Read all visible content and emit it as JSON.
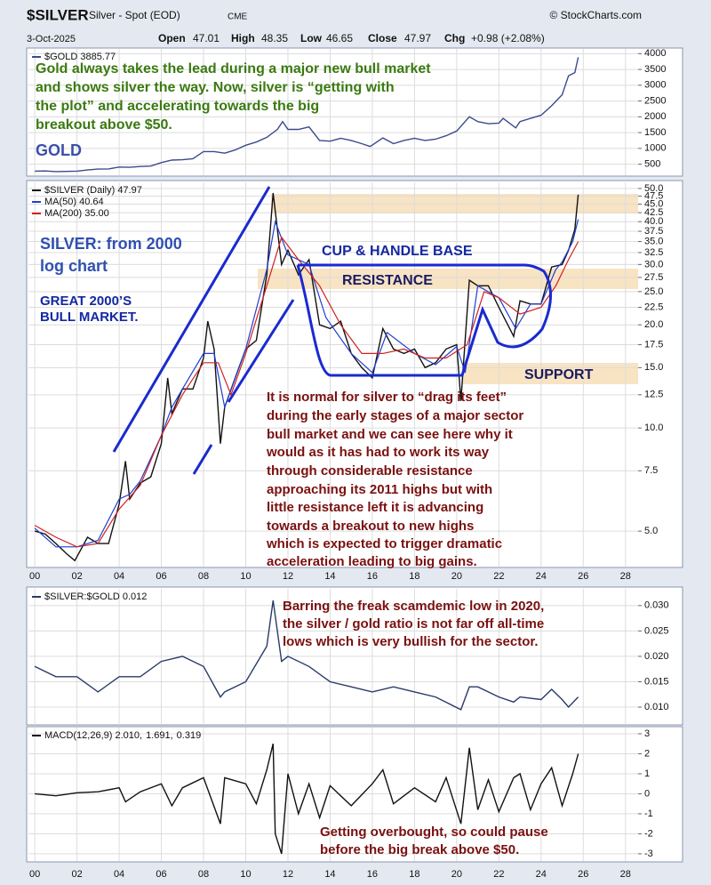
{
  "header": {
    "symbol": "$SILVER",
    "name": "Silver - Spot (EOD)",
    "exchange": "CME",
    "source": "© StockCharts.com",
    "date": "3-Oct-2025",
    "open_label": "Open",
    "open": 47.01,
    "high_label": "High",
    "high": 48.35,
    "low_label": "Low",
    "low": 46.65,
    "close_label": "Close",
    "close": 47.97,
    "chg_label": "Chg",
    "chg": "+0.98 (+2.08%)"
  },
  "chart_data": [
    {
      "type": "line",
      "log_scale": false,
      "grid": true,
      "x": [
        2000,
        2000.5,
        2001,
        2001.5,
        2002,
        2002.5,
        2003,
        2003.5,
        2004,
        2004.5,
        2005,
        2005.5,
        2006,
        2006.5,
        2007,
        2007.5,
        2008,
        2008.5,
        2009,
        2009.5,
        2010,
        2010.5,
        2011,
        2011.5,
        2011.75,
        2012,
        2012.5,
        2013,
        2013.5,
        2014,
        2014.5,
        2015,
        2015.5,
        2015.9,
        2016.5,
        2017,
        2017.5,
        2018,
        2018.5,
        2019,
        2019.5,
        2020,
        2020.6,
        2021,
        2021.5,
        2022,
        2022.2,
        2022.8,
        2023,
        2023.5,
        2024,
        2024.5,
        2025,
        2025.3,
        2025.6,
        2025.76
      ],
      "series": [
        {
          "name": "$GOLD 3885.77",
          "color": "#3b4a8c",
          "values": [
            280,
            285,
            265,
            270,
            280,
            315,
            345,
            350,
            410,
            400,
            425,
            440,
            550,
            630,
            640,
            670,
            900,
            900,
            850,
            950,
            1100,
            1200,
            1350,
            1600,
            1850,
            1600,
            1600,
            1680,
            1250,
            1230,
            1320,
            1250,
            1150,
            1060,
            1330,
            1150,
            1250,
            1320,
            1250,
            1290,
            1400,
            1550,
            2000,
            1850,
            1780,
            1800,
            1950,
            1650,
            1850,
            1950,
            2050,
            2350,
            2700,
            3300,
            3400,
            3886
          ]
        }
      ],
      "xlim": [
        1999.7,
        2028.6
      ],
      "ylim": [
        150,
        4150
      ],
      "yticks": [
        500,
        1000,
        1500,
        2000,
        2500,
        3000,
        3500,
        4000
      ],
      "annotations": [
        {
          "text": "Gold always takes the lead during a major new bull market",
          "color": "#3a7a10"
        },
        {
          "text": "and shows silver the way. Now, silver is “getting with",
          "color": "#3a7a10"
        },
        {
          "text": "the plot” and accelerating towards the big",
          "color": "#3a7a10"
        },
        {
          "text": "breakout above $50.",
          "color": "#3a7a10"
        },
        {
          "text": "GOLD",
          "color": "#3b4fa8"
        }
      ]
    },
    {
      "type": "line",
      "log_scale": true,
      "grid": true,
      "x": [
        2000,
        2000.5,
        2001,
        2001.5,
        2001.9,
        2002.5,
        2003,
        2003.5,
        2004,
        2004.3,
        2004.5,
        2005,
        2005.5,
        2006,
        2006.3,
        2006.5,
        2007,
        2007.5,
        2008,
        2008.2,
        2008.5,
        2008.8,
        2009,
        2009.5,
        2010,
        2010.5,
        2011,
        2011.3,
        2011.7,
        2012,
        2012.5,
        2013,
        2013.5,
        2014,
        2014.5,
        2015,
        2015.5,
        2016,
        2016.5,
        2017,
        2017.5,
        2018,
        2018.5,
        2019,
        2019.5,
        2020,
        2020.2,
        2020.6,
        2021,
        2021.5,
        2022,
        2022.7,
        2023,
        2023.5,
        2024,
        2024.5,
        2025,
        2025.3,
        2025.6,
        2025.76
      ],
      "series": [
        {
          "name": "$SILVER (Daily) 47.97",
          "color": "#111111",
          "values": [
            5.0,
            4.9,
            4.6,
            4.3,
            4.1,
            4.8,
            4.6,
            4.6,
            6.0,
            8.0,
            6.2,
            6.9,
            7.2,
            9.0,
            14.0,
            11.0,
            13.0,
            13.0,
            16.0,
            20.5,
            17.0,
            9.0,
            11.5,
            14.0,
            17.0,
            18.0,
            28.0,
            48.5,
            30.0,
            33.0,
            28.0,
            31.0,
            20.0,
            19.5,
            20.5,
            16.5,
            15.0,
            14.0,
            19.5,
            17.0,
            16.5,
            17.0,
            15.0,
            15.5,
            17.0,
            17.5,
            12.0,
            27.0,
            26.0,
            26.0,
            22.5,
            18.5,
            23.5,
            23.0,
            23.0,
            29.5,
            30.0,
            33.0,
            38.0,
            47.97
          ]
        },
        {
          "name": "MA(50) 40.64",
          "color": "#1f3fd0",
          "x": [
            2000,
            2001,
            2002,
            2003,
            2004,
            2004.5,
            2005,
            2006,
            2006.5,
            2007,
            2008,
            2008.5,
            2009,
            2010,
            2011,
            2011.4,
            2012,
            2013,
            2013.8,
            2015,
            2016,
            2016.7,
            2018,
            2019,
            2020,
            2020.4,
            2021,
            2022,
            2022.8,
            2023.5,
            2024,
            2024.7,
            2025,
            2025.5,
            2025.76
          ],
          "values": [
            5.1,
            4.5,
            4.5,
            4.7,
            6.2,
            6.4,
            7.0,
            9.5,
            11.5,
            13.0,
            16.5,
            16.5,
            11.5,
            17.0,
            29.0,
            40.0,
            32.0,
            30.0,
            21.0,
            16.5,
            14.5,
            19.0,
            16.5,
            15.3,
            17.3,
            14.5,
            26.0,
            24.0,
            19.5,
            23.0,
            23.0,
            29.0,
            30.5,
            35.0,
            40.64
          ]
        },
        {
          "name": "MA(200) 35.00",
          "color": "#d02020",
          "x": [
            2000,
            2001,
            2002,
            2003,
            2004,
            2005,
            2006,
            2007,
            2008,
            2008.7,
            2009.3,
            2010,
            2011,
            2011.7,
            2012.5,
            2013.5,
            2014.5,
            2015.5,
            2016.5,
            2017.5,
            2018.5,
            2019.5,
            2020.5,
            2021.3,
            2022,
            2023,
            2024,
            2024.7,
            2025.3,
            2025.76
          ],
          "values": [
            5.2,
            4.8,
            4.5,
            4.6,
            5.8,
            6.8,
            9.5,
            12.5,
            15.5,
            15.5,
            12.5,
            16.5,
            26.0,
            36.0,
            31.0,
            26.0,
            20.0,
            16.5,
            16.5,
            17.0,
            16.0,
            16.0,
            17.5,
            25.0,
            24.0,
            21.5,
            22.5,
            26.0,
            31.0,
            35.0
          ]
        }
      ],
      "xlim": [
        1999.7,
        2028.6
      ],
      "ylim": [
        3.94,
        52.1
      ],
      "yticks": [
        {
          "value": 5,
          "label": "5.0"
        },
        {
          "value": 7.5,
          "label": "7.5"
        },
        {
          "value": 10,
          "label": "10.0"
        },
        {
          "value": 12.5,
          "label": "12.5"
        },
        {
          "value": 15,
          "label": "15.0"
        },
        {
          "value": 17.5,
          "label": "17.5"
        },
        {
          "value": 20,
          "label": "20.0"
        },
        {
          "value": 22.5,
          "label": "22.5"
        },
        {
          "value": 25,
          "label": "25.0"
        },
        {
          "value": 27.5,
          "label": "27.5"
        },
        {
          "value": 30,
          "label": "30.0"
        },
        {
          "value": 32.5,
          "label": "32.5"
        },
        {
          "value": 35,
          "label": "35.0"
        },
        {
          "value": 37.5,
          "label": "37.5"
        },
        {
          "value": 40,
          "label": "40.0"
        },
        {
          "value": 42.5,
          "label": "42.5"
        },
        {
          "value": 45,
          "label": "45.0"
        },
        {
          "value": 47.5,
          "label": "47.5"
        },
        {
          "value": 50,
          "label": "50.0"
        }
      ],
      "xticks": [
        {
          "value": 2000,
          "label": "00"
        },
        {
          "value": 2002,
          "label": "02"
        },
        {
          "value": 2004,
          "label": "04"
        },
        {
          "value": 2006,
          "label": "06"
        },
        {
          "value": 2008,
          "label": "08"
        },
        {
          "value": 2010,
          "label": "10"
        },
        {
          "value": 2012,
          "label": "12"
        },
        {
          "value": 2014,
          "label": "14"
        },
        {
          "value": 2016,
          "label": "16"
        },
        {
          "value": 2018,
          "label": "18"
        },
        {
          "value": 2020,
          "label": "20"
        },
        {
          "value": 2022,
          "label": "22"
        },
        {
          "value": 2024,
          "label": "24"
        },
        {
          "value": 2026,
          "label": "26"
        },
        {
          "value": 2028,
          "label": "28"
        }
      ],
      "annotations": [
        {
          "text": "SILVER: from 2000",
          "color": "#3050b0"
        },
        {
          "text": "log chart",
          "color": "#3050b0"
        },
        {
          "text": "GREAT 2000’S",
          "color": "#1428a0"
        },
        {
          "text": "BULL MARKET.",
          "color": "#1428a0"
        },
        {
          "text": "CUP & HANDLE BASE",
          "color": "#1428a0"
        },
        {
          "text": "RESISTANCE",
          "color": "#1a1a60"
        },
        {
          "text": "SUPPORT",
          "color": "#1a1a60"
        },
        {
          "text": "It is normal for silver to “drag its feet”",
          "color": "#7a1010"
        },
        {
          "text": "during the early stages of a major sector",
          "color": "#7a1010"
        },
        {
          "text": "bull market and we can see here why it",
          "color": "#7a1010"
        },
        {
          "text": "would as it has had to work its way",
          "color": "#7a1010"
        },
        {
          "text": "through considerable resistance",
          "color": "#7a1010"
        },
        {
          "text": "approaching its 2011 highs but with",
          "color": "#7a1010"
        },
        {
          "text": "little resistance left it is advancing",
          "color": "#7a1010"
        },
        {
          "text": "towards a breakout to new highs",
          "color": "#7a1010"
        },
        {
          "text": "which is expected to trigger dramatic",
          "color": "#7a1010"
        },
        {
          "text": "acceleration leading to big gains.",
          "color": "#7a1010"
        }
      ]
    },
    {
      "type": "line",
      "log_scale": false,
      "grid": true,
      "x": [
        2000,
        2001,
        2002,
        2003,
        2004,
        2005,
        2006,
        2007,
        2008,
        2008.8,
        2009,
        2010,
        2011,
        2011.3,
        2011.7,
        2012,
        2013,
        2014,
        2015,
        2016,
        2017,
        2018,
        2019,
        2020.2,
        2020.6,
        2021,
        2022,
        2022.7,
        2023,
        2024,
        2024.5,
        2025,
        2025.3,
        2025.76
      ],
      "series": [
        {
          "name": "$SILVER:$GOLD 0.012",
          "color": "#2a3a6a",
          "values": [
            0.018,
            0.016,
            0.016,
            0.013,
            0.016,
            0.016,
            0.019,
            0.02,
            0.018,
            0.012,
            0.013,
            0.015,
            0.022,
            0.031,
            0.019,
            0.02,
            0.018,
            0.015,
            0.014,
            0.013,
            0.014,
            0.013,
            0.012,
            0.0095,
            0.014,
            0.014,
            0.012,
            0.011,
            0.012,
            0.0115,
            0.0135,
            0.0115,
            0.01,
            0.012
          ]
        }
      ],
      "xlim": [
        1999.7,
        2028.6
      ],
      "ylim": [
        0.0065,
        0.0333
      ],
      "yticks": [
        {
          "value": 0.01,
          "label": "0.010"
        },
        {
          "value": 0.015,
          "label": "0.015"
        },
        {
          "value": 0.02,
          "label": "0.020"
        },
        {
          "value": 0.025,
          "label": "0.025"
        },
        {
          "value": 0.03,
          "label": "0.030"
        }
      ],
      "annotations": [
        {
          "text": "Barring the freak scamdemic low in 2020,",
          "color": "#7a1010"
        },
        {
          "text": "the silver / gold ratio is not far off all-time",
          "color": "#7a1010"
        },
        {
          "text": "lows which is very bullish for the sector.",
          "color": "#7a1010"
        }
      ]
    },
    {
      "type": "line",
      "log_scale": false,
      "grid": true,
      "x": [
        2000,
        2001,
        2002,
        2003,
        2004,
        2004.3,
        2005,
        2006,
        2006.5,
        2007,
        2008,
        2008.8,
        2009,
        2010,
        2010.5,
        2011,
        2011.3,
        2011.4,
        2011.7,
        2012,
        2012.5,
        2013,
        2013.5,
        2014,
        2015,
        2016,
        2016.5,
        2017,
        2018,
        2019,
        2019.5,
        2020.2,
        2020.6,
        2021,
        2021.5,
        2022,
        2022.7,
        2023,
        2023.5,
        2024,
        2024.5,
        2025,
        2025.5,
        2025.76
      ],
      "series": [
        {
          "name": "MACD(12,26,9) 2.010,",
          "color": "#111111",
          "values": [
            0,
            -0.1,
            0.05,
            0.1,
            0.3,
            -0.4,
            0.1,
            0.5,
            -0.6,
            0.3,
            0.8,
            -1.5,
            0.8,
            0.5,
            -0.5,
            1.2,
            2.5,
            -2.0,
            -3.0,
            1.0,
            -1.0,
            0.5,
            -1.2,
            0.4,
            -0.6,
            0.5,
            1.2,
            -0.5,
            0.3,
            -0.4,
            0.8,
            -1.5,
            2.3,
            -0.8,
            0.7,
            -0.9,
            0.8,
            1.0,
            -0.8,
            0.5,
            1.3,
            -0.6,
            1.0,
            2.0
          ]
        }
      ],
      "legend_extra": [
        {
          "text": "1.691,",
          "color": "#b02020"
        },
        {
          "text": "0.319",
          "color": "#2a9a8a"
        }
      ],
      "xlim": [
        1999.7,
        2028.6
      ],
      "ylim": [
        -3.36,
        3.31
      ],
      "yticks": [
        -3,
        -2,
        -1,
        0,
        1,
        2,
        3
      ],
      "xticks": [
        {
          "value": 2000,
          "label": "00"
        },
        {
          "value": 2002,
          "label": "02"
        },
        {
          "value": 2004,
          "label": "04"
        },
        {
          "value": 2006,
          "label": "06"
        },
        {
          "value": 2008,
          "label": "08"
        },
        {
          "value": 2010,
          "label": "10"
        },
        {
          "value": 2012,
          "label": "12"
        },
        {
          "value": 2014,
          "label": "14"
        },
        {
          "value": 2016,
          "label": "16"
        },
        {
          "value": 2018,
          "label": "18"
        },
        {
          "value": 2020,
          "label": "20"
        },
        {
          "value": 2022,
          "label": "22"
        },
        {
          "value": 2024,
          "label": "24"
        },
        {
          "value": 2026,
          "label": "26"
        },
        {
          "value": 2028,
          "label": "28"
        }
      ],
      "annotations": [
        {
          "text": "Getting overbought, so could pause",
          "color": "#7a1010"
        },
        {
          "text": "before the big break above $50.",
          "color": "#7a1010"
        }
      ]
    }
  ]
}
